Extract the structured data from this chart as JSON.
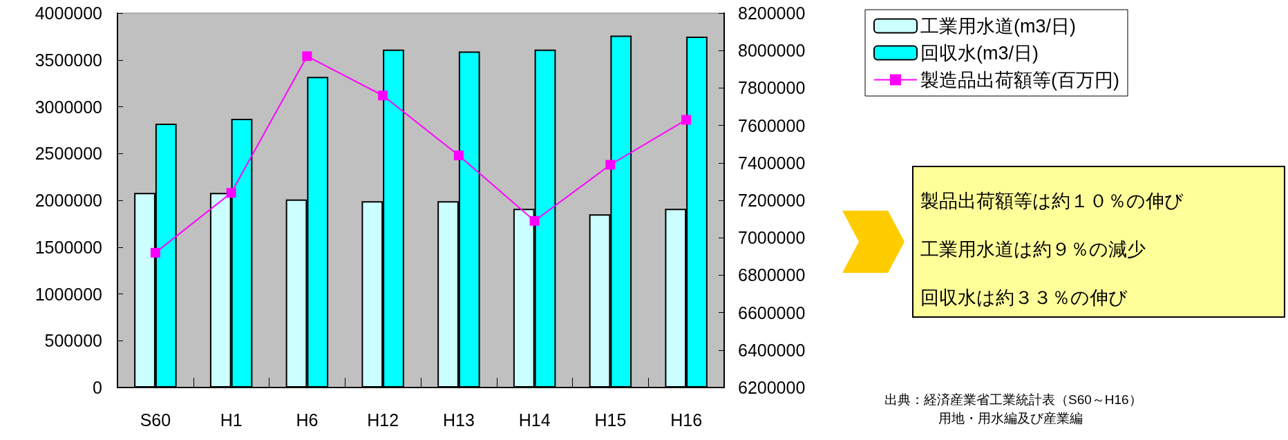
{
  "chart_data": {
    "type": "bar",
    "categories": [
      "S60",
      "H1",
      "H6",
      "H12",
      "H13",
      "H14",
      "H15",
      "H16"
    ],
    "series": [
      {
        "name": "工業用水道(m3/日)",
        "color": "#ccffff",
        "values": [
          2080000,
          2080000,
          2010000,
          1990000,
          1990000,
          1910000,
          1850000,
          1910000
        ]
      },
      {
        "name": "回収水(m3/日)",
        "color": "#00ffff",
        "values": [
          2820000,
          2870000,
          3320000,
          3610000,
          3590000,
          3610000,
          3760000,
          3750000
        ]
      },
      {
        "name": "製造品出荷額等(百万円)",
        "type": "line",
        "axis": "y2",
        "color": "#ff00ff",
        "values": [
          6920000,
          7240000,
          7970000,
          7760000,
          7440000,
          7090000,
          7390000,
          7630000
        ]
      }
    ],
    "ylim": [
      0,
      4000000
    ],
    "yticks": [
      0,
      500000,
      1000000,
      1500000,
      2000000,
      2500000,
      3000000,
      3500000,
      4000000
    ],
    "y2lim": [
      6200000,
      8200000
    ],
    "y2ticks": [
      6200000,
      6400000,
      6600000,
      6800000,
      7000000,
      7200000,
      7400000,
      7600000,
      7800000,
      8000000,
      8200000
    ],
    "marker": "square",
    "line_style": "solid",
    "grid": false,
    "legend": "top right",
    "annotations": [
      "製品出荷額等は約１０％の伸び",
      "工業用水道は約９％の減少",
      "回収水は約３３％の伸び",
      "出典：経済産業省工業統計表（S60～H16）",
      "用地・用水編及び産業編"
    ]
  }
}
